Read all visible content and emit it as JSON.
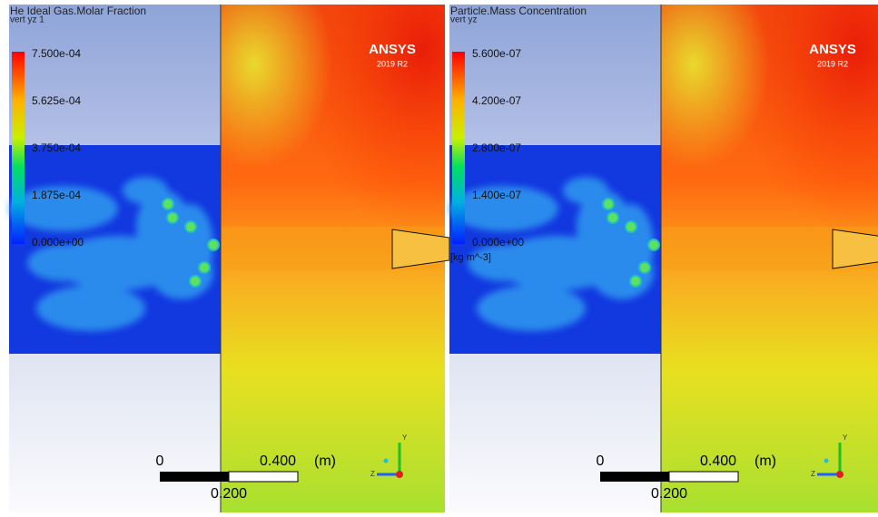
{
  "panels": [
    {
      "title": "He Ideal Gas.Molar Fraction",
      "subtitle": "vert yz 1",
      "legend_labels": [
        "7.500e-04",
        "5.625e-04",
        "3.750e-04",
        "1.875e-04",
        "0.000e+00"
      ],
      "logo": "ANSYS",
      "version": "2019 R2",
      "scale": {
        "start": "0",
        "end": "0.400",
        "unit": "(m)",
        "mid": "0.200"
      },
      "triad": {
        "y": "Y",
        "z": "Z"
      }
    },
    {
      "title": "Particle.Mass Concentration",
      "subtitle": "vert yz",
      "legend_labels": [
        "5.600e-07",
        "4.200e-07",
        "2.800e-07",
        "1.400e-07",
        "0.000e+00"
      ],
      "units": "[kg m^-3]",
      "logo": "ANSYS",
      "version": "2019 R2",
      "scale": {
        "start": "0",
        "end": "0.400",
        "unit": "(m)",
        "mid": "0.200"
      },
      "triad": {
        "y": "Y",
        "z": "Z"
      }
    }
  ]
}
